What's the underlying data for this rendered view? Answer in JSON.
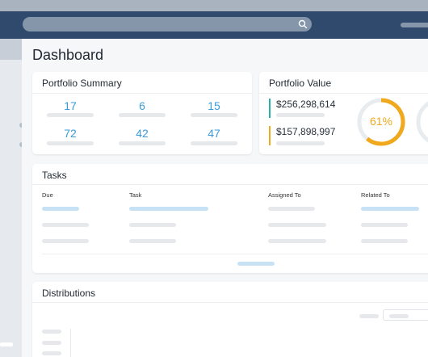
{
  "page": {
    "title": "Dashboard"
  },
  "search": {
    "icon": "search-icon"
  },
  "portfolio_summary": {
    "title": "Portfolio Summary",
    "stats": [
      "17",
      "6",
      "15",
      "72",
      "42",
      "47"
    ]
  },
  "portfolio_value": {
    "title": "Portfolio Value",
    "values": [
      "$256,298,614",
      "$157,898,997"
    ],
    "gauge_percent_label": "61%",
    "gauge_percent": 61,
    "colors": {
      "primary": "#2bb0a8",
      "secondary": "#f0a81c"
    }
  },
  "tasks": {
    "title": "Tasks",
    "columns": [
      "Due",
      "Task",
      "Assigned To",
      "Related To"
    ]
  },
  "distributions": {
    "title": "Distributions"
  },
  "colors": {
    "header": "#2f4a6c",
    "accent": "#3a9bd8",
    "gauge": "#f0a81c"
  }
}
